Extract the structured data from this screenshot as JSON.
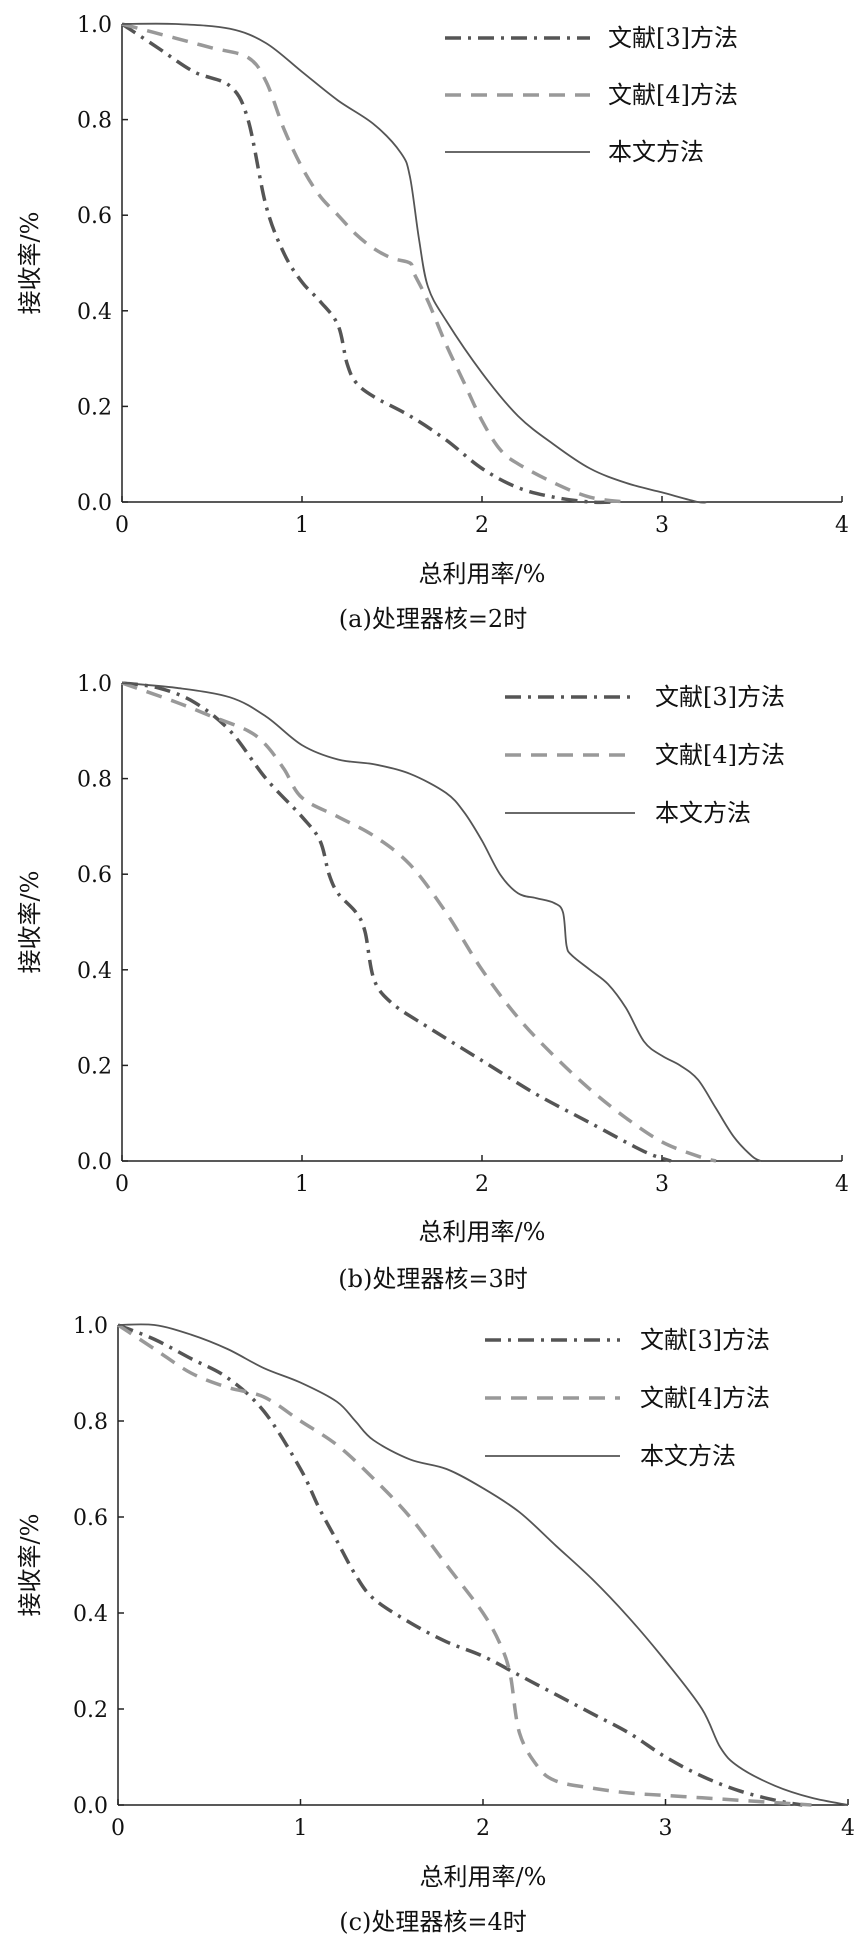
{
  "chart_data": [
    {
      "type": "line",
      "caption": "(a)处理器核=2时",
      "xlabel": "总利用率/%",
      "ylabel": "接收率/%",
      "xlim": [
        0,
        4
      ],
      "ylim": [
        0,
        1.0
      ],
      "xticks": [
        "0",
        "1",
        "2",
        "3",
        "4"
      ],
      "yticks": [
        "0.0",
        "0.2",
        "0.4",
        "0.6",
        "0.8",
        "1.0"
      ],
      "legend_position": "top-right",
      "grid": false,
      "series": [
        {
          "name": "文献[3]方法",
          "style": "dashdot",
          "color": "#555555",
          "x": [
            0,
            0.2,
            0.4,
            0.6,
            0.7,
            0.8,
            0.9,
            1.0,
            1.1,
            1.2,
            1.25,
            1.3,
            1.4,
            1.6,
            1.8,
            2.0,
            2.2,
            2.4,
            2.6,
            2.75
          ],
          "y": [
            1.0,
            0.95,
            0.9,
            0.87,
            0.8,
            0.62,
            0.52,
            0.46,
            0.42,
            0.37,
            0.29,
            0.25,
            0.22,
            0.18,
            0.13,
            0.07,
            0.03,
            0.01,
            0.0,
            0.0
          ]
        },
        {
          "name": "文献[4]方法",
          "style": "dashed",
          "color": "#999999",
          "x": [
            0,
            0.3,
            0.5,
            0.7,
            0.8,
            0.9,
            1.0,
            1.1,
            1.2,
            1.3,
            1.4,
            1.5,
            1.6,
            1.62,
            1.7,
            1.8,
            1.9,
            2.0,
            2.1,
            2.2,
            2.4,
            2.6,
            2.8
          ],
          "y": [
            1.0,
            0.97,
            0.95,
            0.93,
            0.88,
            0.78,
            0.7,
            0.64,
            0.6,
            0.56,
            0.53,
            0.51,
            0.5,
            0.48,
            0.42,
            0.33,
            0.25,
            0.17,
            0.11,
            0.08,
            0.04,
            0.01,
            0.0
          ]
        },
        {
          "name": "本文方法",
          "style": "solid",
          "color": "#555555",
          "x": [
            0,
            0.3,
            0.6,
            0.8,
            1.0,
            1.2,
            1.4,
            1.55,
            1.6,
            1.65,
            1.7,
            1.8,
            2.0,
            2.2,
            2.4,
            2.6,
            2.8,
            3.0,
            3.2,
            3.25
          ],
          "y": [
            1.0,
            1.0,
            0.99,
            0.96,
            0.9,
            0.84,
            0.79,
            0.73,
            0.68,
            0.55,
            0.45,
            0.38,
            0.27,
            0.18,
            0.12,
            0.07,
            0.04,
            0.02,
            0.0,
            0.0
          ]
        }
      ]
    },
    {
      "type": "line",
      "caption": "(b)处理器核=3时",
      "xlabel": "总利用率/%",
      "ylabel": "接收率/%",
      "xlim": [
        0,
        4
      ],
      "ylim": [
        0,
        1.0
      ],
      "xticks": [
        "0",
        "1",
        "2",
        "3",
        "4"
      ],
      "yticks": [
        "0.0",
        "0.2",
        "0.4",
        "0.6",
        "0.8",
        "1.0"
      ],
      "legend_position": "top-right",
      "grid": false,
      "series": [
        {
          "name": "文献[3]方法",
          "style": "dashdot",
          "color": "#555555",
          "x": [
            0,
            0.2,
            0.4,
            0.6,
            0.8,
            1.0,
            1.1,
            1.15,
            1.2,
            1.3,
            1.35,
            1.4,
            1.5,
            1.7,
            2.0,
            2.3,
            2.6,
            2.9,
            3.05
          ],
          "y": [
            1.0,
            0.99,
            0.96,
            0.9,
            0.8,
            0.72,
            0.67,
            0.6,
            0.56,
            0.52,
            0.48,
            0.38,
            0.33,
            0.28,
            0.21,
            0.14,
            0.08,
            0.02,
            0.0
          ]
        },
        {
          "name": "文献[4]方法",
          "style": "dashed",
          "color": "#999999",
          "x": [
            0,
            0.3,
            0.5,
            0.7,
            0.8,
            0.9,
            1.0,
            1.2,
            1.4,
            1.6,
            1.8,
            2.0,
            2.2,
            2.4,
            2.6,
            2.8,
            3.0,
            3.2,
            3.3
          ],
          "y": [
            1.0,
            0.96,
            0.93,
            0.9,
            0.87,
            0.82,
            0.76,
            0.72,
            0.68,
            0.62,
            0.52,
            0.4,
            0.3,
            0.22,
            0.15,
            0.09,
            0.04,
            0.01,
            0.0
          ]
        },
        {
          "name": "本文方法",
          "style": "solid",
          "color": "#555555",
          "x": [
            0,
            0.3,
            0.6,
            0.8,
            1.0,
            1.2,
            1.4,
            1.6,
            1.8,
            1.9,
            2.0,
            2.1,
            2.2,
            2.3,
            2.4,
            2.45,
            2.47,
            2.5,
            2.6,
            2.7,
            2.8,
            2.9,
            3.0,
            3.1,
            3.2,
            3.3,
            3.4,
            3.5,
            3.55
          ],
          "y": [
            1.0,
            0.99,
            0.97,
            0.93,
            0.87,
            0.84,
            0.83,
            0.81,
            0.77,
            0.73,
            0.67,
            0.6,
            0.56,
            0.55,
            0.54,
            0.52,
            0.45,
            0.43,
            0.4,
            0.37,
            0.32,
            0.25,
            0.22,
            0.2,
            0.17,
            0.11,
            0.05,
            0.01,
            0.0
          ]
        }
      ]
    },
    {
      "type": "line",
      "caption": "(c)处理器核=4时",
      "xlabel": "总利用率/%",
      "ylabel": "接收率/%",
      "xlim": [
        0,
        4
      ],
      "ylim": [
        0,
        1.0
      ],
      "xticks": [
        "0",
        "1",
        "2",
        "3",
        "4"
      ],
      "yticks": [
        "0.0",
        "0.2",
        "0.4",
        "0.6",
        "0.8",
        "1.0"
      ],
      "legend_position": "top-right",
      "grid": false,
      "series": [
        {
          "name": "文献[3]方法",
          "style": "dashdot",
          "color": "#555555",
          "x": [
            0,
            0.2,
            0.4,
            0.6,
            0.8,
            1.0,
            1.1,
            1.2,
            1.3,
            1.4,
            1.6,
            1.8,
            2.0,
            2.2,
            2.4,
            2.6,
            2.8,
            3.0,
            3.2,
            3.4,
            3.6,
            3.75
          ],
          "y": [
            1.0,
            0.97,
            0.93,
            0.89,
            0.82,
            0.7,
            0.62,
            0.55,
            0.48,
            0.43,
            0.38,
            0.34,
            0.31,
            0.27,
            0.23,
            0.19,
            0.15,
            0.1,
            0.06,
            0.03,
            0.01,
            0.0
          ]
        },
        {
          "name": "文献[4]方法",
          "style": "dashed",
          "color": "#999999",
          "x": [
            0,
            0.2,
            0.4,
            0.6,
            0.8,
            1.0,
            1.2,
            1.4,
            1.6,
            1.8,
            2.0,
            2.1,
            2.15,
            2.2,
            2.3,
            2.4,
            2.6,
            2.8,
            3.0,
            3.2,
            3.4,
            3.6,
            3.8
          ],
          "y": [
            1.0,
            0.95,
            0.9,
            0.87,
            0.85,
            0.8,
            0.75,
            0.68,
            0.6,
            0.5,
            0.4,
            0.33,
            0.27,
            0.15,
            0.08,
            0.05,
            0.035,
            0.025,
            0.02,
            0.015,
            0.01,
            0.005,
            0.0
          ]
        },
        {
          "name": "本文方法",
          "style": "solid",
          "color": "#555555",
          "x": [
            0,
            0.2,
            0.4,
            0.6,
            0.8,
            1.0,
            1.2,
            1.3,
            1.4,
            1.6,
            1.8,
            2.0,
            2.2,
            2.4,
            2.6,
            2.8,
            3.0,
            3.2,
            3.3,
            3.4,
            3.6,
            3.8,
            4.0
          ],
          "y": [
            1.0,
            1.0,
            0.98,
            0.95,
            0.91,
            0.88,
            0.84,
            0.8,
            0.76,
            0.72,
            0.7,
            0.66,
            0.61,
            0.54,
            0.47,
            0.39,
            0.3,
            0.2,
            0.12,
            0.08,
            0.04,
            0.015,
            0.0
          ]
        }
      ]
    }
  ]
}
